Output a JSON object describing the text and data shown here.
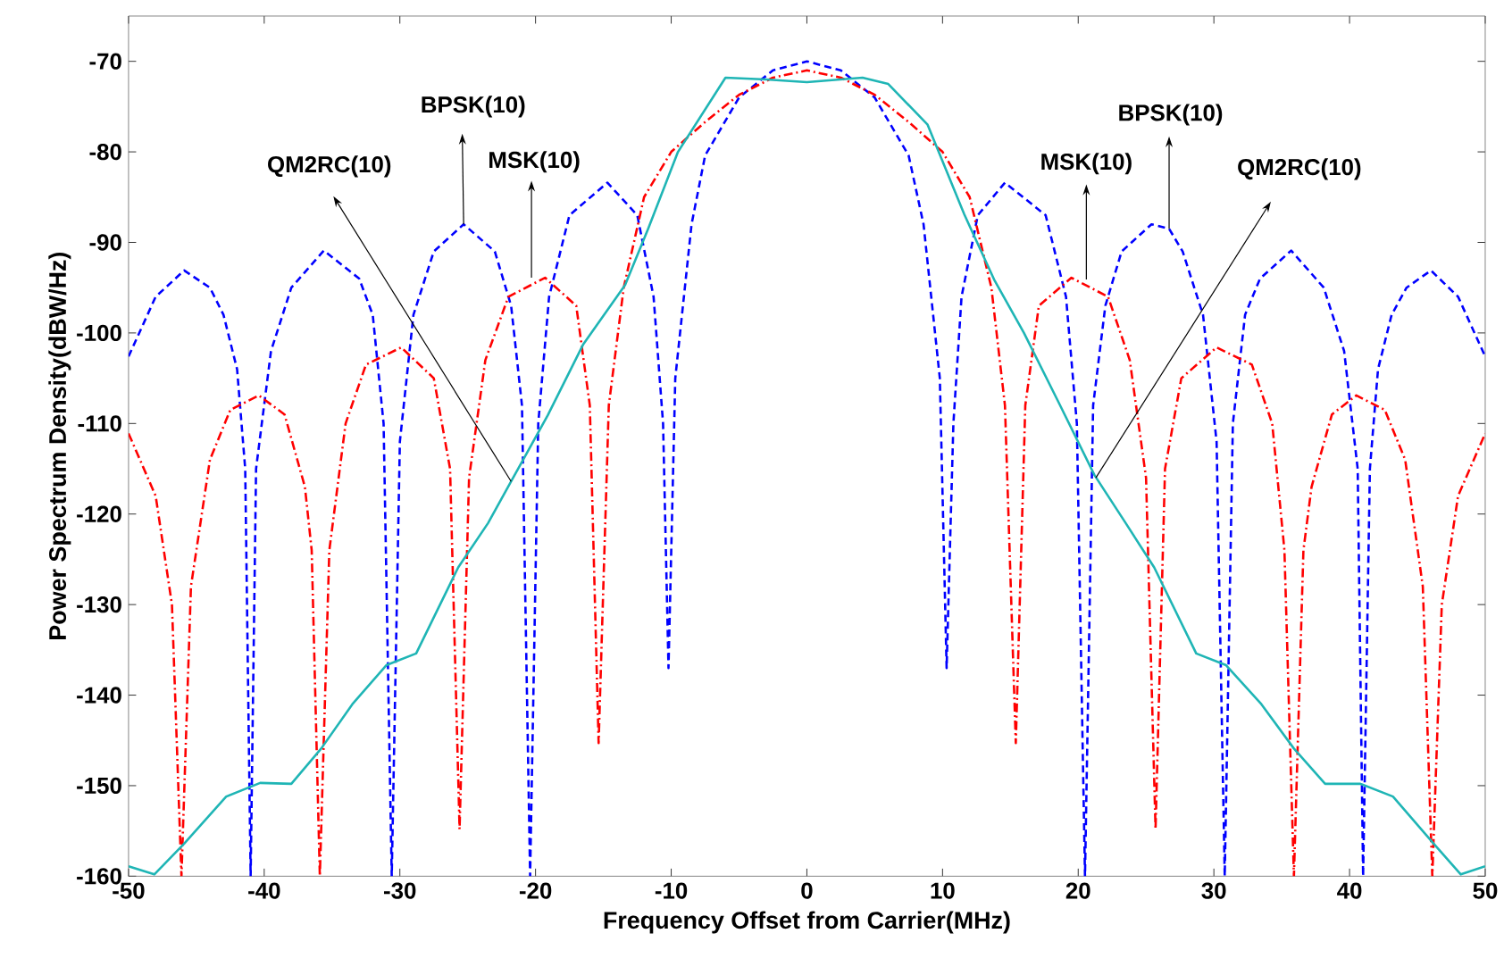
{
  "chart_data": {
    "type": "line",
    "xlabel": "Frequency Offset from Carrier(MHz)",
    "ylabel": "Power Spectrum Density(dBW/Hz)",
    "xlim": [
      -50,
      50
    ],
    "ylim": [
      -160,
      -65
    ],
    "xticks": [
      -50,
      -40,
      -30,
      -20,
      -10,
      0,
      10,
      20,
      30,
      40,
      50
    ],
    "yticks": [
      -160,
      -150,
      -140,
      -130,
      -120,
      -110,
      -100,
      -90,
      -80,
      -70
    ],
    "grid": false,
    "marker": "none",
    "series": [
      {
        "color": "#0000ff",
        "line_style": "dashed",
        "x": [
          -50,
          -48,
          -45.9,
          -44,
          -43,
          -42,
          -41.4,
          -41,
          -40.6,
          -39.5,
          -38,
          -35.6,
          -33,
          -32,
          -31.2,
          -30.6,
          -30,
          -29,
          -27.5,
          -25.3,
          -23,
          -21.8,
          -21,
          -20.4,
          -19.8,
          -19,
          -17.5,
          -14.7,
          -12.5,
          -11.3,
          -10.6,
          -10.2,
          -9.7,
          -8.5,
          -7.5,
          -5,
          -2.5,
          0,
          2.5,
          5,
          7.5,
          8.6,
          9.8,
          10.3,
          10.8,
          11.4,
          12.6,
          14.6,
          17.6,
          19.1,
          19.9,
          20.5,
          21.1,
          22,
          23.2,
          25.4,
          26.7,
          27.7,
          29.2,
          30.2,
          30.8,
          31.4,
          32.3,
          33.4,
          35.7,
          38.1,
          39.6,
          40.6,
          41,
          41.5,
          42.1,
          43.1,
          44.2,
          46,
          48,
          50
        ],
        "values": [
          -102.6,
          -96,
          -93.1,
          -95,
          -98,
          -104,
          -115,
          -160,
          -115,
          -102,
          -95,
          -90.9,
          -94,
          -98,
          -110,
          -160,
          -112,
          -98,
          -91,
          -88,
          -91,
          -97,
          -108,
          -160,
          -110,
          -96,
          -87,
          -83.4,
          -87,
          -96,
          -110,
          -137,
          -105,
          -88,
          -80.4,
          -74,
          -71,
          -70,
          -71,
          -74,
          -80.4,
          -88,
          -105,
          -137,
          -110,
          -96,
          -87,
          -83.4,
          -87,
          -96,
          -110,
          -160,
          -108,
          -97,
          -91,
          -88,
          -88.5,
          -91,
          -98,
          -112,
          -160,
          -110,
          -98,
          -94,
          -90.9,
          -95,
          -102,
          -115,
          -160,
          -115,
          -104,
          -98,
          -95,
          -93.1,
          -96,
          -102.6
        ]
      },
      {
        "color": "#ff0000",
        "line_style": "dashdot",
        "x": [
          -50,
          -48,
          -46.8,
          -46.1,
          -45.4,
          -44,
          -42.5,
          -40.4,
          -38.5,
          -37,
          -36.5,
          -35.9,
          -35.2,
          -34,
          -32.5,
          -29.9,
          -27.5,
          -26.3,
          -25.6,
          -24.9,
          -23.7,
          -22,
          -19.3,
          -17,
          -16,
          -15.35,
          -14.6,
          -13.5,
          -12,
          -10,
          -7.5,
          -5,
          -2.5,
          0,
          2.5,
          5,
          7.5,
          10,
          12,
          13.6,
          14.6,
          15.4,
          16.1,
          17.1,
          19.5,
          22.2,
          23.8,
          25,
          25.7,
          26.4,
          27.6,
          30.2,
          32.8,
          34.3,
          35.2,
          35.9,
          36.6,
          37.2,
          38.7,
          40.5,
          42.6,
          44.1,
          45.4,
          46.1,
          46.8,
          48,
          50
        ],
        "values": [
          -111.1,
          -118,
          -130,
          -160,
          -128,
          -114,
          -108.5,
          -106.9,
          -109,
          -117,
          -124,
          -160,
          -124,
          -110,
          -103.5,
          -101.6,
          -105,
          -115,
          -154.8,
          -116,
          -103,
          -96,
          -93.9,
          -97,
          -108,
          -145.3,
          -108,
          -95,
          -85,
          -80,
          -76.7,
          -73.7,
          -71.8,
          -71,
          -71.8,
          -73.7,
          -76.7,
          -80,
          -85,
          -95,
          -108,
          -145.3,
          -108,
          -97,
          -93.9,
          -96,
          -103,
          -116,
          -154.8,
          -115,
          -105,
          -101.6,
          -103.5,
          -110,
          -124,
          -160,
          -124,
          -117,
          -109,
          -106.9,
          -108.5,
          -114,
          -128,
          -160,
          -130,
          -118,
          -111.1
        ]
      },
      {
        "color": "#1fb5b5",
        "line_style": "solid",
        "x": [
          -50,
          -48.1,
          -45.9,
          -42.8,
          -40.3,
          -38,
          -35.8,
          -33.5,
          -31,
          -28.8,
          -25.7,
          -23.5,
          -21.8,
          -19.1,
          -16.5,
          -13.4,
          -11.7,
          -9.5,
          -6,
          -3,
          0,
          4.1,
          6,
          8.9,
          11.6,
          13.8,
          16,
          18.6,
          21.2,
          23.5,
          25.6,
          28.7,
          30.9,
          33.5,
          35.9,
          38.2,
          40.8,
          43.2,
          46.2,
          48.2,
          50
        ],
        "values": [
          -158.9,
          -159.8,
          -156.4,
          -151.2,
          -149.7,
          -149.8,
          -145.9,
          -141,
          -136.7,
          -135.4,
          -125.9,
          -121,
          -116.4,
          -109.1,
          -101.3,
          -94.7,
          -88.5,
          -80,
          -71.8,
          -72,
          -72.3,
          -71.8,
          -72.5,
          -77,
          -86.9,
          -94.1,
          -100,
          -107.8,
          -115.7,
          -121,
          -125.9,
          -135.4,
          -136.7,
          -141,
          -145.9,
          -149.8,
          -149.8,
          -151.2,
          -156.4,
          -159.8,
          -158.9
        ]
      }
    ],
    "annotations": [
      {
        "text": "QM2RC(10)",
        "x": -21.8,
        "y": -116.4
      },
      {
        "text": "BPSK(10)",
        "x": -25.3,
        "y": -88
      },
      {
        "text": "MSK(10)",
        "x": -20.3,
        "y": -93.9
      },
      {
        "text": "MSK(10)",
        "x": 20.6,
        "y": -94.1
      },
      {
        "text": "BPSK(10)",
        "x": 26.7,
        "y": -88.5
      },
      {
        "text": "QM2RC(10)",
        "x": 21.3,
        "y": -116
      }
    ]
  }
}
